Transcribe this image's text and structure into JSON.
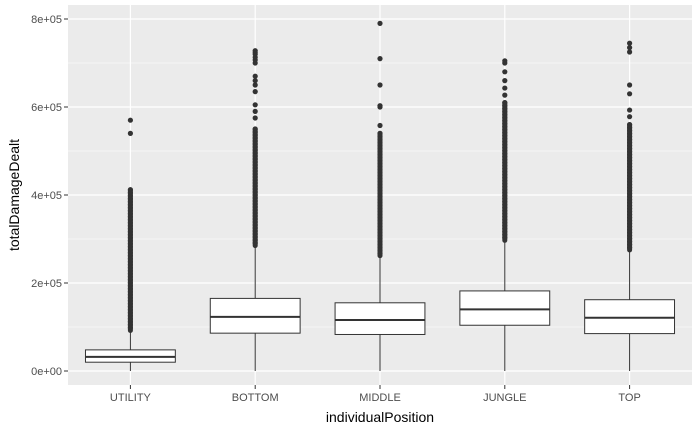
{
  "chart_data": {
    "type": "box",
    "xlabel": "individualPosition",
    "ylabel": "totalDamageDealt",
    "ylim": [
      -2000,
      802000
    ],
    "y_ticks": [
      0,
      200000,
      400000,
      600000,
      800000
    ],
    "y_tick_labels": [
      "0e+00",
      "2e+05",
      "4e+05",
      "6e+05",
      "8e+05"
    ],
    "grid": true,
    "panel_background": "#ebebeb",
    "grid_color": "#ffffff",
    "box_fill": "#ffffff",
    "outline_color": "#333333",
    "categories": [
      "UTILITY",
      "BOTTOM",
      "MIDDLE",
      "JUNGLE",
      "TOP"
    ],
    "boxes": [
      {
        "category": "UTILITY",
        "whisker_low": 0,
        "q1": 20000,
        "median": 32000,
        "q3": 48000,
        "whisker_high": 92000,
        "outlier_range": [
          92000,
          412000
        ],
        "sparse_outliers": [
          540000,
          570000
        ]
      },
      {
        "category": "BOTTOM",
        "whisker_low": 0,
        "q1": 86000,
        "median": 123000,
        "q3": 165000,
        "whisker_high": 285000,
        "outlier_range": [
          285000,
          550000
        ],
        "sparse_outliers": [
          575000,
          590000,
          605000,
          635000,
          650000,
          660000,
          670000,
          700000,
          707000,
          713000,
          720000,
          724000,
          728000
        ]
      },
      {
        "category": "MIDDLE",
        "whisker_low": 0,
        "q1": 83000,
        "median": 116000,
        "q3": 155000,
        "whisker_high": 262000,
        "outlier_range": [
          262000,
          540000
        ],
        "sparse_outliers": [
          558000,
          600000,
          603000,
          650000,
          710000,
          790000
        ]
      },
      {
        "category": "JUNGLE",
        "whisker_low": 0,
        "q1": 104000,
        "median": 140000,
        "q3": 182000,
        "whisker_high": 297000,
        "outlier_range": [
          297000,
          610000
        ],
        "sparse_outliers": [
          627000,
          643000,
          660000,
          680000,
          700000,
          705000
        ]
      },
      {
        "category": "TOP",
        "whisker_low": 0,
        "q1": 85000,
        "median": 121000,
        "q3": 162000,
        "whisker_high": 275000,
        "outlier_range": [
          275000,
          560000
        ],
        "sparse_outliers": [
          578000,
          593000,
          630000,
          650000,
          725000,
          735000,
          745000
        ]
      }
    ]
  }
}
